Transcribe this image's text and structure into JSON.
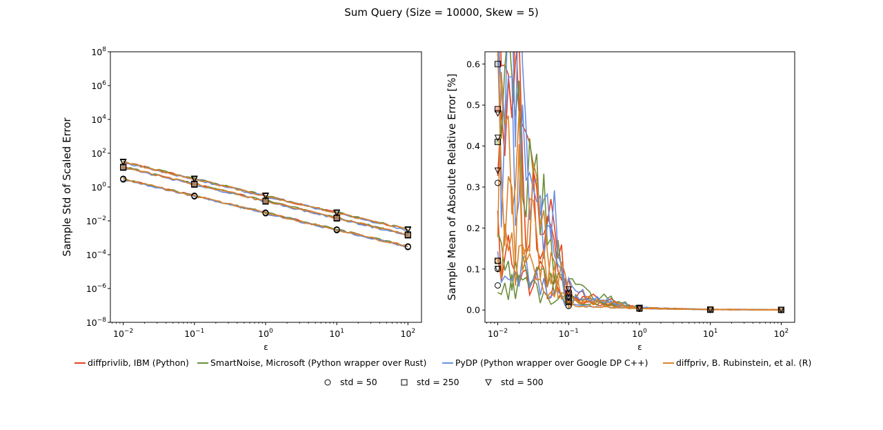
{
  "title": "Sum Query (Size = 10000, Skew = 5)",
  "chart_data": [
    {
      "type": "line",
      "panel": "left",
      "xlabel": "ε",
      "ylabel": "Sample Std of Scaled Error",
      "xscale": "log",
      "yscale": "log",
      "xlim": [
        0.0066,
        155
      ],
      "ylim": [
        1e-08,
        100000000.0
      ],
      "xticks": [
        {
          "v": 0.01,
          "b": "10",
          "e": "−2"
        },
        {
          "v": 0.1,
          "b": "10",
          "e": "−1"
        },
        {
          "v": 1,
          "b": "10",
          "e": "0"
        },
        {
          "v": 10,
          "b": "10",
          "e": "1"
        },
        {
          "v": 100,
          "b": "10",
          "e": "2"
        }
      ],
      "yticks": [
        {
          "v": 1e-08,
          "b": "10",
          "e": "−8"
        },
        {
          "v": 1e-06,
          "b": "10",
          "e": "−6"
        },
        {
          "v": 0.0001,
          "b": "10",
          "e": "−4"
        },
        {
          "v": 0.01,
          "b": "10",
          "e": "−2"
        },
        {
          "v": 1,
          "b": "10",
          "e": "0"
        },
        {
          "v": 100,
          "b": "10",
          "e": "2"
        },
        {
          "v": 10000.0,
          "b": "10",
          "e": "4"
        },
        {
          "v": 1000000.0,
          "b": "10",
          "e": "6"
        },
        {
          "v": 100000000.0,
          "b": "10",
          "e": "8"
        }
      ],
      "x": [
        0.01,
        0.1,
        1,
        10,
        100
      ],
      "series": [
        {
          "name": "diffprivlib, IBM (Python)",
          "color": "#e8401b",
          "std50": [
            3.0,
            0.3,
            0.03,
            0.003,
            0.0003
          ],
          "std250": [
            15,
            1.5,
            0.15,
            0.015,
            0.0015
          ],
          "std500": [
            30,
            3.0,
            0.3,
            0.03,
            0.003
          ]
        },
        {
          "name": "SmartNoise, Microsoft (Python wrapper over Rust)",
          "color": "#6b8e3a",
          "std50": [
            3.1,
            0.31,
            0.031,
            0.0031,
            0.00031
          ],
          "std250": [
            15.5,
            1.55,
            0.155,
            0.0155,
            0.00155
          ],
          "std500": [
            31,
            3.1,
            0.31,
            0.031,
            0.0031
          ]
        },
        {
          "name": "PyDP (Python wrapper over Google DP C++)",
          "color": "#6b8ee0",
          "std50": [
            2.8,
            0.28,
            0.028,
            0.0028,
            0.00028
          ],
          "std250": [
            14,
            1.4,
            0.14,
            0.014,
            0.0014
          ],
          "std500": [
            28,
            2.8,
            0.28,
            0.028,
            0.0028
          ]
        },
        {
          "name": "diffpriv, B. Rubinstein, et al. (R)",
          "color": "#d9822b",
          "std50": [
            3.0,
            0.3,
            0.03,
            0.003,
            0.0003
          ],
          "std250": [
            15,
            1.5,
            0.15,
            0.015,
            0.0015
          ],
          "std500": [
            30,
            3.0,
            0.3,
            0.03,
            0.003
          ]
        }
      ]
    },
    {
      "type": "line",
      "panel": "right",
      "xlabel": "ε",
      "ylabel": "Sample Mean of Absolute Relative Error [%]",
      "xscale": "log",
      "yscale": "linear",
      "xlim": [
        0.0066,
        155
      ],
      "ylim": [
        -0.03,
        0.63
      ],
      "xticks": [
        {
          "v": 0.01,
          "b": "10",
          "e": "−2"
        },
        {
          "v": 0.1,
          "b": "10",
          "e": "−1"
        },
        {
          "v": 1,
          "b": "10",
          "e": "0"
        },
        {
          "v": 10,
          "b": "10",
          "e": "1"
        },
        {
          "v": 100,
          "b": "10",
          "e": "2"
        }
      ],
      "yticks": [
        "0.0",
        "0.1",
        "0.2",
        "0.3",
        "0.4",
        "0.5",
        "0.6"
      ],
      "x": [
        0.01,
        0.1,
        1,
        10,
        100
      ],
      "series": [
        {
          "name": "diffprivlib, IBM (Python)",
          "color": "#e8401b",
          "std50": [
            0.12,
            0.03,
            0.005,
            0.001,
            0.0004
          ],
          "std250": [
            0.49,
            0.04,
            0.005,
            0.001,
            0.0004
          ],
          "std500": [
            0.48,
            0.02,
            0.004,
            0.001,
            0.0003
          ]
        },
        {
          "name": "SmartNoise, Microsoft (Python wrapper over Rust)",
          "color": "#6b8e3a",
          "std50": [
            0.06,
            0.02,
            0.004,
            0.001,
            0.0003
          ],
          "std250": [
            0.41,
            0.03,
            0.004,
            0.001,
            0.0003
          ],
          "std500": [
            0.1,
            0.05,
            0.005,
            0.001,
            0.0003
          ]
        },
        {
          "name": "PyDP (Python wrapper over Google DP C++)",
          "color": "#6b8ee0",
          "std50": [
            0.1,
            0.01,
            0.003,
            0.001,
            0.0003
          ],
          "std250": [
            0.6,
            0.03,
            0.004,
            0.001,
            0.0004
          ],
          "std500": [
            0.42,
            0.04,
            0.005,
            0.001,
            0.0004
          ]
        },
        {
          "name": "diffpriv, B. Rubinstein, et al. (R)",
          "color": "#d9822b",
          "std50": [
            0.31,
            0.01,
            0.003,
            0.001,
            0.0003
          ],
          "std250": [
            0.12,
            0.02,
            0.004,
            0.001,
            0.0003
          ],
          "std500": [
            0.34,
            0.03,
            0.004,
            0.001,
            0.0003
          ]
        }
      ]
    }
  ],
  "legend": {
    "series": [
      {
        "label": "diffprivlib, IBM (Python)",
        "color": "#e8401b"
      },
      {
        "label": "SmartNoise, Microsoft (Python wrapper over Rust)",
        "color": "#6b8e3a"
      },
      {
        "label": "PyDP (Python wrapper over Google DP C++)",
        "color": "#6b8ee0"
      },
      {
        "label": "diffpriv, B. Rubinstein, et al. (R)",
        "color": "#d9822b"
      }
    ],
    "markers": [
      {
        "label": "std = 50",
        "marker": "circle"
      },
      {
        "label": "std = 250",
        "marker": "square"
      },
      {
        "label": "std = 500",
        "marker": "triangle-down"
      }
    ]
  }
}
